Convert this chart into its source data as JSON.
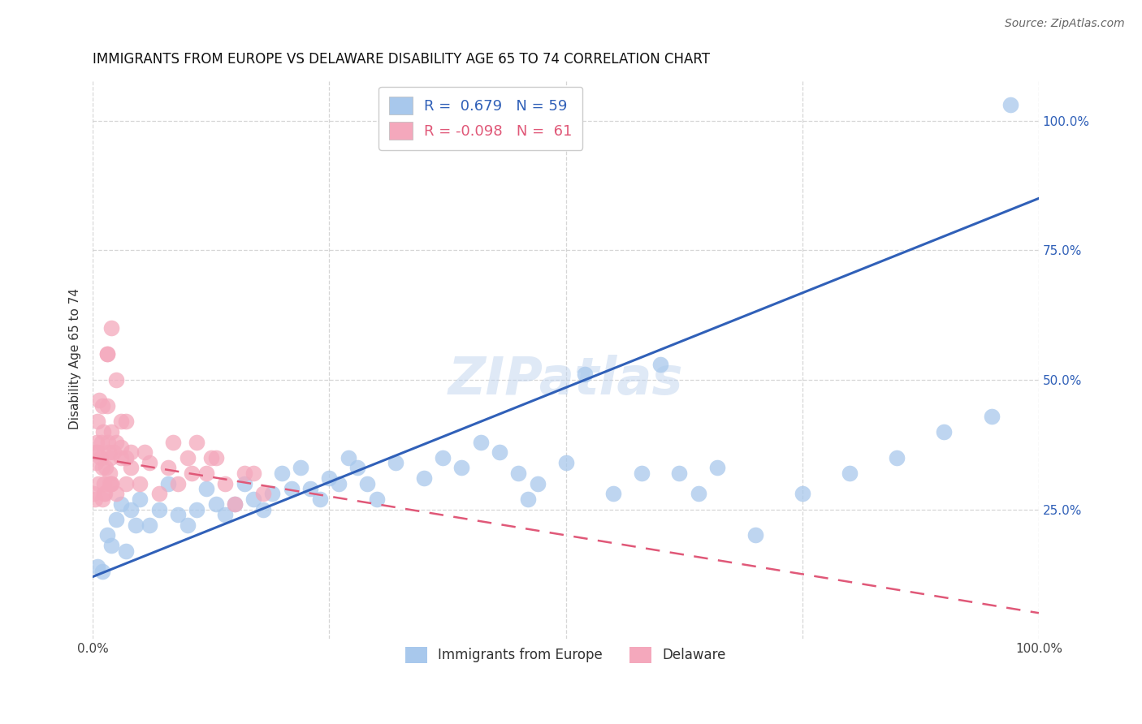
{
  "title": "IMMIGRANTS FROM EUROPE VS DELAWARE DISABILITY AGE 65 TO 74 CORRELATION CHART",
  "source": "Source: ZipAtlas.com",
  "ylabel": "Disability Age 65 to 74",
  "x_tick_labels": [
    "0.0%",
    "",
    "",
    "",
    "100.0%"
  ],
  "x_tick_vals": [
    0,
    25,
    50,
    75,
    100
  ],
  "y_tick_labels": [
    "25.0%",
    "50.0%",
    "75.0%",
    "100.0%"
  ],
  "y_tick_vals": [
    25,
    50,
    75,
    100
  ],
  "xlim": [
    0,
    100
  ],
  "ylim": [
    0,
    108
  ],
  "legend_labels": [
    "Immigrants from Europe",
    "Delaware"
  ],
  "blue_color": "#A8C8EC",
  "pink_color": "#F4A8BC",
  "blue_line_color": "#3060B8",
  "pink_line_color": "#E05878",
  "watermark": "ZIPatlas",
  "R_blue": "0.679",
  "N_blue": 59,
  "R_pink": "-0.098",
  "N_pink": 61,
  "blue_line_y0": 12,
  "blue_line_y1": 85,
  "pink_line_y0": 35,
  "pink_line_y1": 5,
  "blue_scatter_x": [
    0.5,
    1.0,
    1.5,
    2.0,
    2.5,
    3.0,
    3.5,
    4.0,
    4.5,
    5.0,
    6.0,
    7.0,
    8.0,
    9.0,
    10.0,
    11.0,
    12.0,
    13.0,
    14.0,
    15.0,
    16.0,
    17.0,
    18.0,
    19.0,
    20.0,
    21.0,
    22.0,
    23.0,
    24.0,
    25.0,
    26.0,
    27.0,
    28.0,
    29.0,
    30.0,
    32.0,
    35.0,
    37.0,
    39.0,
    41.0,
    43.0,
    45.0,
    46.0,
    47.0,
    50.0,
    52.0,
    55.0,
    58.0,
    60.0,
    62.0,
    64.0,
    66.0,
    70.0,
    75.0,
    80.0,
    85.0,
    90.0,
    95.0,
    97.0
  ],
  "blue_scatter_y": [
    14,
    13,
    20,
    18,
    23,
    26,
    17,
    25,
    22,
    27,
    22,
    25,
    30,
    24,
    22,
    25,
    29,
    26,
    24,
    26,
    30,
    27,
    25,
    28,
    32,
    29,
    33,
    29,
    27,
    31,
    30,
    35,
    33,
    30,
    27,
    34,
    31,
    35,
    33,
    38,
    36,
    32,
    27,
    30,
    34,
    51,
    28,
    32,
    53,
    32,
    28,
    33,
    20,
    28,
    32,
    35,
    40,
    43,
    103
  ],
  "pink_scatter_x": [
    0.1,
    0.2,
    0.3,
    0.3,
    0.4,
    0.5,
    0.5,
    0.6,
    0.7,
    0.8,
    0.9,
    1.0,
    1.0,
    1.1,
    1.2,
    1.3,
    1.4,
    1.5,
    1.6,
    1.7,
    1.8,
    1.9,
    2.0,
    2.2,
    2.5,
    3.0,
    3.5,
    4.0,
    5.0,
    6.0,
    7.0,
    8.0,
    9.0,
    10.0,
    11.0,
    12.0,
    13.0,
    14.0,
    15.0,
    16.0,
    17.0,
    18.0,
    3.5,
    5.5,
    8.5,
    10.5,
    12.5,
    4.0,
    3.0,
    2.5,
    2.0,
    1.5,
    1.5,
    2.0,
    2.5,
    3.0,
    3.5,
    2.0,
    1.8,
    1.2,
    1.0
  ],
  "pink_scatter_y": [
    28,
    27,
    34,
    36,
    38,
    42,
    36,
    30,
    46,
    35,
    38,
    45,
    33,
    40,
    30,
    28,
    33,
    55,
    38,
    36,
    30,
    35,
    30,
    36,
    28,
    35,
    30,
    33,
    30,
    34,
    28,
    33,
    30,
    35,
    38,
    32,
    35,
    30,
    26,
    32,
    32,
    28,
    42,
    36,
    38,
    32,
    35,
    36,
    37,
    38,
    40,
    45,
    55,
    60,
    50,
    42,
    35,
    30,
    32,
    28,
    27
  ]
}
